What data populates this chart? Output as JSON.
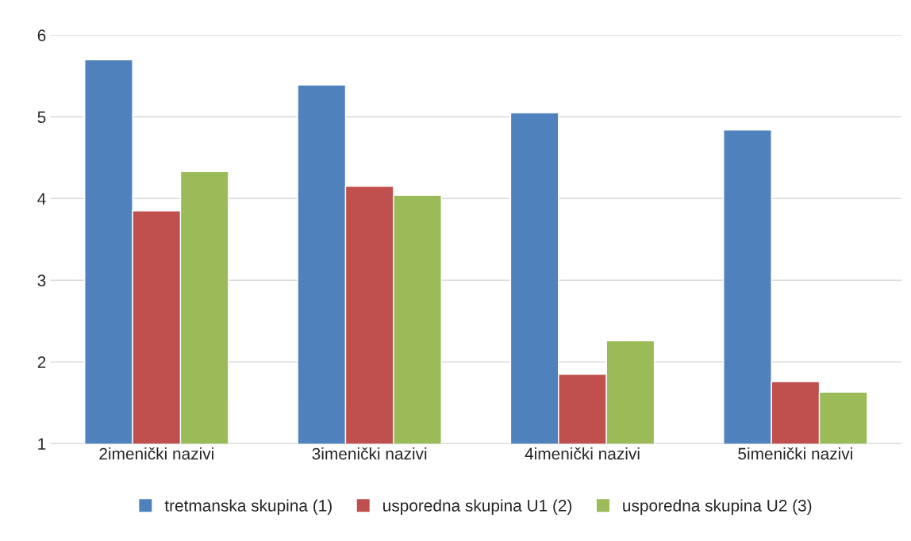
{
  "chart_data": {
    "type": "bar",
    "categories": [
      "2imenički nazivi",
      "3imenički nazivi",
      "4imenički nazivi",
      "5imenički nazivi"
    ],
    "series": [
      {
        "name": "tretmanska skupina (1)",
        "color": "#4f81bd",
        "values": [
          5.7,
          5.39,
          5.05,
          4.84
        ]
      },
      {
        "name": "usporedna skupina U1 (2)",
        "color": "#c0504d",
        "values": [
          3.85,
          4.15,
          1.85,
          1.76
        ]
      },
      {
        "name": "usporedna skupina U2 (3)",
        "color": "#9bbb59",
        "values": [
          4.33,
          4.04,
          2.26,
          1.63
        ]
      }
    ],
    "ylim": [
      1,
      6
    ],
    "yticks": [
      1,
      2,
      3,
      4,
      5,
      6
    ],
    "grid": "y",
    "legend": "bottom"
  }
}
